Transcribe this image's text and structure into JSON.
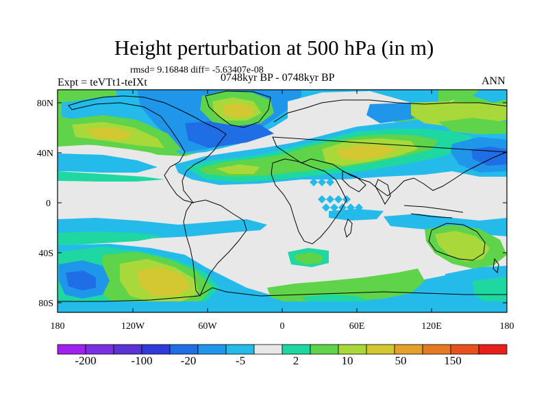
{
  "title": "Height perturbation at 500 hPa (in m)",
  "stats": "rmsd= 9.16848 diff= -5.63407e-08",
  "experiment": "Expt = teVTt1-teIXt",
  "period": "0748kyr BP - 0748kyr BP",
  "season": "ANN",
  "lat_labels": [
    "80N",
    "40N",
    "0",
    "40S",
    "80S"
  ],
  "lon_labels": [
    "180",
    "120W",
    "60W",
    "0",
    "60E",
    "120E",
    "180"
  ],
  "colorbar": {
    "colors": [
      "#a020f0",
      "#7a30e0",
      "#5a32d6",
      "#2f3ad8",
      "#1f6ee6",
      "#1f96ea",
      "#24bbea",
      "#e8e8e8",
      "#1fd7a0",
      "#5fd44a",
      "#a8d83a",
      "#d4c832",
      "#e3a02a",
      "#e57a22",
      "#e8501e",
      "#e8201a"
    ],
    "labels": [
      "-200",
      "-100",
      "-20",
      "-5",
      "2",
      "10",
      "50",
      "150"
    ]
  },
  "field_colors": {
    "neutral": "#e8e8e8",
    "pos1": "#1fd7a0",
    "pos2": "#5fd44a",
    "pos3": "#a8d83a",
    "pos4": "#d4c832",
    "pos5": "#e3a02a",
    "neg1": "#24bbea",
    "neg2": "#1f96ea",
    "neg3": "#1f6ee6",
    "neg4": "#2f3ad8"
  }
}
